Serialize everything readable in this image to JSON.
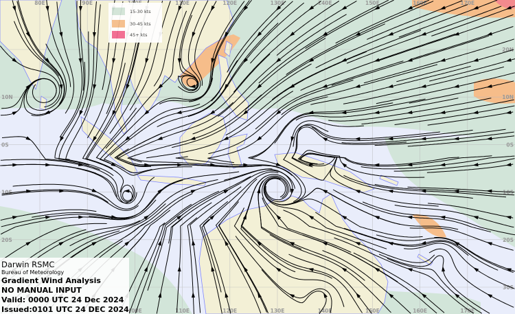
{
  "info_box": {
    "center": "Darwin RSMC",
    "agency": "Bureau of Meteorology",
    "title": "Gradient Wind Analysis",
    "input_note": "NO MANUAL INPUT",
    "valid": "Valid:   0000 UTC 24 Dec 2024",
    "issued": "Issued:0101 UTC 24 DEC 2024"
  },
  "legend": [
    {
      "label": "15-30 kts",
      "color": "#d2e5d9"
    },
    {
      "label": "30-45 kts",
      "color": "#f6bd8a"
    },
    {
      "label": "45+ kts",
      "color": "#f2678f"
    }
  ],
  "grid": {
    "top_longitudes": [
      "80E",
      "90E",
      "100E",
      "110E",
      "120E",
      "130E",
      "140E",
      "150E",
      "160E",
      "170E"
    ],
    "bottom_longitudes": [
      "100E",
      "110E",
      "120E",
      "130E",
      "140E",
      "150E",
      "160E",
      "170E"
    ],
    "right_latitudes": [
      "20N",
      "10N",
      "0S",
      "10S",
      "20S",
      "30S"
    ],
    "left_latitudes": [
      "10N",
      "0S",
      "10S",
      "20S"
    ]
  },
  "colors": {
    "ocean": "#e9edfb",
    "land": "#f3f0d6",
    "coastline": "#7f86ff",
    "streamline": "#000000"
  }
}
